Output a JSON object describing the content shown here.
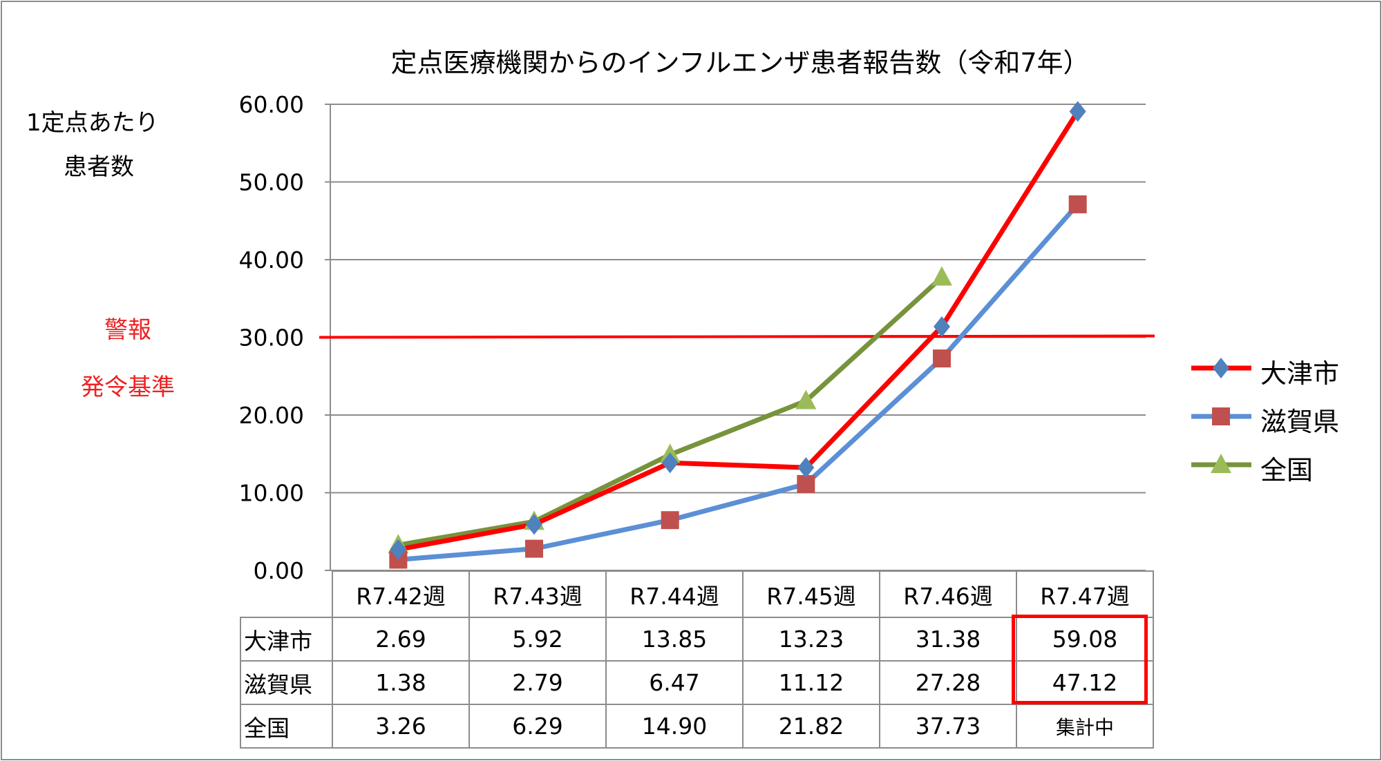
{
  "chart_data": {
    "type": "line",
    "title": "定点医療機関からのインフルエンザ患者報告数（令和7年）",
    "ylabel_lines": [
      "1定点あたり",
      "患者数"
    ],
    "xlabel": "",
    "ylim": [
      0,
      60
    ],
    "yticks": [
      "0.00",
      "10.00",
      "20.00",
      "30.00",
      "40.00",
      "50.00",
      "60.00"
    ],
    "grid": true,
    "legend_position": "right",
    "categories": [
      "R7.42週",
      "R7.43週",
      "R7.44週",
      "R7.45週",
      "R7.46週",
      "R7.47週"
    ],
    "series": [
      {
        "name": "大津市",
        "values": [
          2.69,
          5.92,
          13.85,
          13.23,
          31.38,
          59.08
        ],
        "labels": [
          "2.69",
          "5.92",
          "13.85",
          "13.23",
          "31.38",
          "59.08"
        ],
        "line_color": "#ff0000",
        "marker_color": "#4f81bd",
        "marker": "diamond"
      },
      {
        "name": "滋賀県",
        "values": [
          1.38,
          2.79,
          6.47,
          11.12,
          27.28,
          47.12
        ],
        "labels": [
          "1.38",
          "2.79",
          "6.47",
          "11.12",
          "27.28",
          "47.12"
        ],
        "line_color": "#5b8fd6",
        "marker_color": "#c0504d",
        "marker": "square"
      },
      {
        "name": "全国",
        "values": [
          3.26,
          6.29,
          14.9,
          21.82,
          37.73,
          null
        ],
        "labels": [
          "3.26",
          "6.29",
          "14.90",
          "21.82",
          "37.73",
          "集計中"
        ],
        "line_color": "#77933c",
        "marker_color": "#9bbb59",
        "marker": "triangle"
      }
    ],
    "reference_line": {
      "value": 30,
      "label_lines": [
        "警報",
        "発令基準"
      ],
      "color": "#ff0000"
    },
    "highlight_note": "R7.47週 大津市・滋賀県 values boxed in red"
  }
}
